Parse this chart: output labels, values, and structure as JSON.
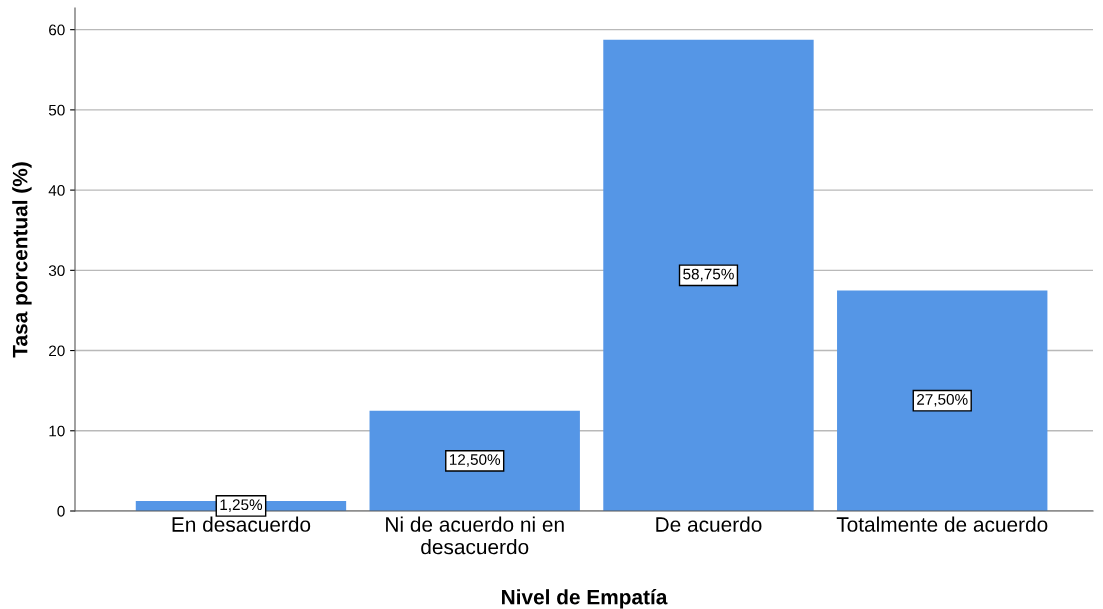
{
  "chart_data": {
    "type": "bar",
    "xlabel": "Nivel de Empatía",
    "ylabel": "Tasa porcentual (%)",
    "categories": [
      "En desacuerdo",
      "Ni de acuerdo ni en\ndesacuerdo",
      "De acuerdo",
      "Totalmente de acuerdo"
    ],
    "values": [
      1.25,
      12.5,
      58.75,
      27.5
    ],
    "value_labels": [
      "1,25%",
      "12,50%",
      "58,75%",
      "27,50%"
    ],
    "color": "#5596e6",
    "ylim": [
      0,
      62.7
    ],
    "yticks": [
      0,
      10,
      20,
      30,
      40,
      50,
      60
    ],
    "grid": "y"
  }
}
